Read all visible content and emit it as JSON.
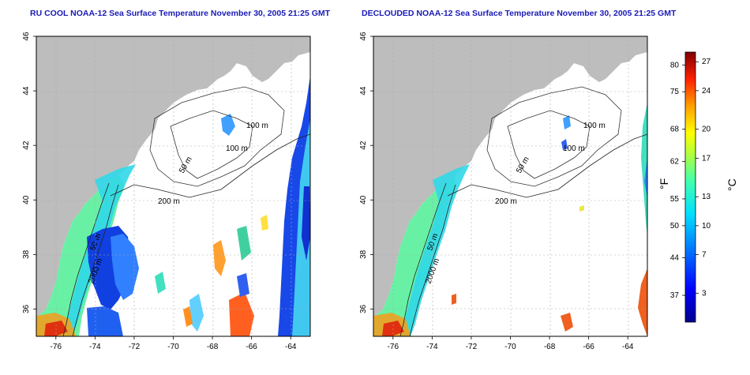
{
  "panels": [
    {
      "title": "RU COOL NOAA-12 Sea Surface Temperature November 30, 2005 21:25 GMT",
      "contour_labels": [
        "100 m",
        "100 m",
        "50 m",
        "200 m",
        "50 m",
        "2000 m"
      ]
    },
    {
      "title": "DECLOUDED NOAA-12 Sea Surface Temperature November 30, 2005 21:25 GMT",
      "contour_labels": [
        "100 m",
        "100 m",
        "50 m",
        "200 m",
        "50 m",
        "2000 m"
      ]
    }
  ],
  "axes": {
    "x_ticks": [
      "-76",
      "-74",
      "-72",
      "-70",
      "-68",
      "-66",
      "-64"
    ],
    "y_ticks": [
      "36",
      "38",
      "40",
      "42",
      "44",
      "46"
    ],
    "x_values": [
      -76,
      -74,
      -72,
      -70,
      -68,
      -66,
      -64
    ],
    "y_values": [
      36,
      38,
      40,
      42,
      44,
      46
    ],
    "lon_range": [
      -77,
      -63
    ],
    "lat_range": [
      35,
      46
    ]
  },
  "colorbar": {
    "fahrenheit_ticks": [
      "80",
      "75",
      "68",
      "62",
      "55",
      "50",
      "44",
      "37"
    ],
    "celsius_ticks": [
      "27",
      "24",
      "20",
      "17",
      "13",
      "10",
      "7",
      "3"
    ],
    "fahrenheit_label": "°F",
    "celsius_label": "°C",
    "range_c": [
      0,
      28
    ]
  },
  "colors": {
    "land": "#bdbdbd",
    "title": "#1a1ab8",
    "grid": "#b0b0b0",
    "ocean_missing": "#ffffff"
  }
}
